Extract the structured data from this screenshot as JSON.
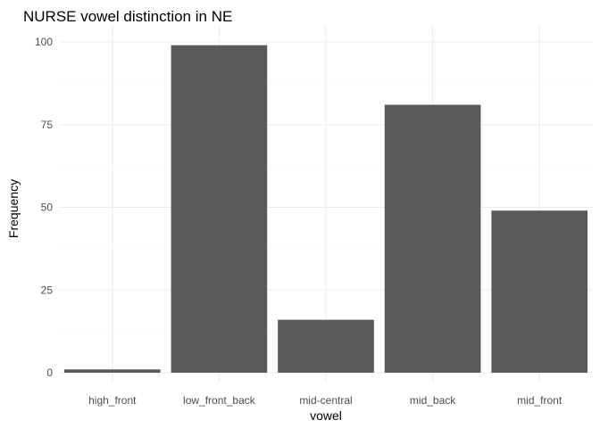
{
  "chart_data": {
    "type": "bar",
    "title": "NURSE vowel distinction in NE",
    "xlabel": "vowel",
    "ylabel": "Frequency",
    "categories": [
      "high_front",
      "low_front_back",
      "mid-central",
      "mid_back",
      "mid_front"
    ],
    "values": [
      1,
      99,
      16,
      81,
      49
    ],
    "ylim": [
      0,
      104
    ],
    "yticks": [
      0,
      25,
      50,
      75,
      100
    ],
    "grid": true,
    "bar_color": "#595959"
  }
}
